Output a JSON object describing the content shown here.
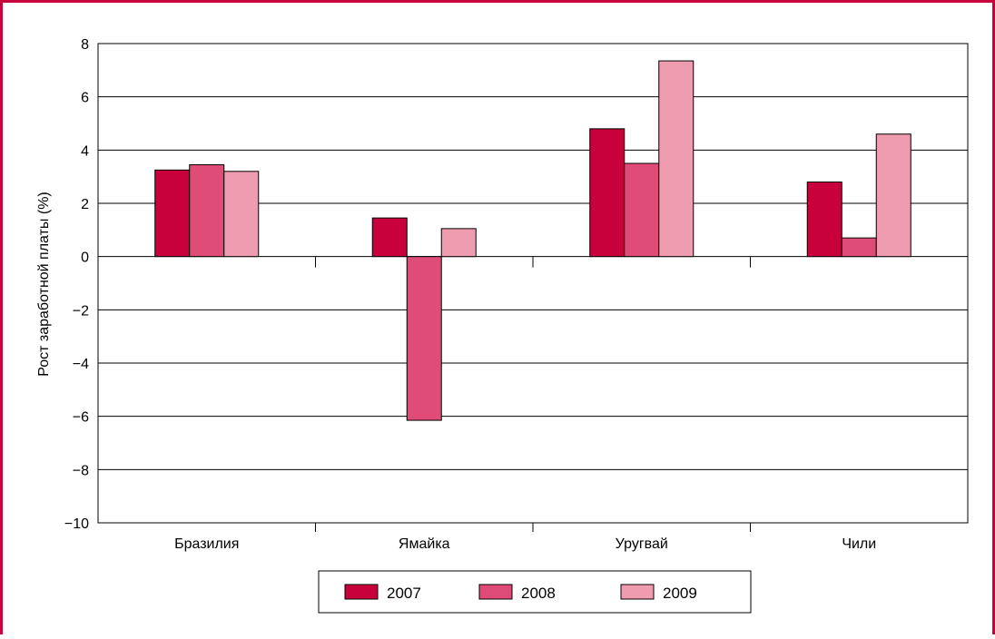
{
  "chart_data": {
    "type": "bar",
    "title": "",
    "xlabel": "",
    "ylabel": "Рост заработной платы (%)",
    "ylim": [
      -10,
      8
    ],
    "yticks": [
      8,
      6,
      4,
      2,
      0,
      -2,
      -4,
      -6,
      -8,
      -10
    ],
    "ytick_labels": [
      "8",
      "6",
      "4",
      "2",
      "0",
      "−2",
      "−4",
      "−6",
      "−8",
      "−10"
    ],
    "grid": true,
    "legend_position": "bottom",
    "categories": [
      "Бразилия",
      "Ямайка",
      "Уругвай",
      "Чили"
    ],
    "series": [
      {
        "name": "2007",
        "color": "#c8003c",
        "values": [
          3.25,
          1.45,
          4.8,
          2.8
        ]
      },
      {
        "name": "2008",
        "color": "#e04c78",
        "values": [
          3.45,
          -6.15,
          3.5,
          0.7
        ]
      },
      {
        "name": "2009",
        "color": "#ef9bb0",
        "values": [
          3.2,
          1.05,
          7.35,
          4.6
        ]
      }
    ]
  }
}
